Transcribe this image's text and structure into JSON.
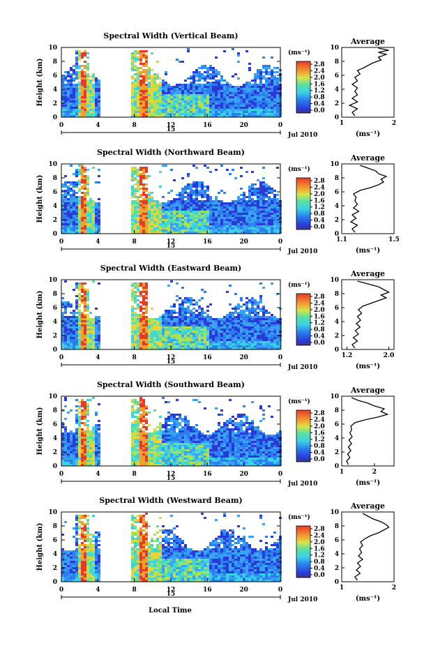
{
  "figure": {
    "x_axis_label": "Local Time",
    "date_label": "Jul 2010",
    "colorbar_unit": "(ms⁻¹)",
    "average_title": "Average",
    "average_unit": "(ms⁻¹)"
  },
  "chart_data": [
    {
      "type": "heatmap",
      "title": "Spectral Width (Vertical Beam)",
      "ylabel": "Height (km)",
      "ylim": [
        0,
        10
      ],
      "yticks": [
        "0",
        "2",
        "4",
        "6",
        "8",
        "10"
      ],
      "xlim": [
        0,
        24
      ],
      "xticks": [
        "0",
        "4",
        "8",
        "12",
        "16",
        "20",
        "0"
      ],
      "day_label": "15",
      "colorbar": {
        "ticks": [
          "2.8",
          "2.4",
          "2.0",
          "1.6",
          "1.2",
          "0.8",
          "0.4",
          "0.0"
        ],
        "range": [
          0,
          3.0
        ]
      },
      "data_gap_hours": [
        4.2,
        7.4
      ],
      "average": {
        "xticks": [
          "1",
          "2"
        ],
        "xlim": [
          1,
          2
        ],
        "ylim": [
          0,
          10
        ],
        "profile": [
          [
            0.2,
            1.25
          ],
          [
            0.7,
            1.2
          ],
          [
            1.2,
            1.3
          ],
          [
            1.7,
            1.15
          ],
          [
            2.2,
            1.3
          ],
          [
            2.7,
            1.2
          ],
          [
            3.2,
            1.3
          ],
          [
            3.7,
            1.25
          ],
          [
            4.2,
            1.3
          ],
          [
            4.7,
            1.2
          ],
          [
            5.2,
            1.3
          ],
          [
            5.7,
            1.25
          ],
          [
            6.2,
            1.35
          ],
          [
            6.7,
            1.3
          ],
          [
            7.0,
            1.4
          ],
          [
            7.4,
            1.5
          ],
          [
            7.8,
            1.6
          ],
          [
            8.2,
            1.75
          ],
          [
            8.6,
            1.7
          ],
          [
            9.0,
            1.85
          ],
          [
            9.3,
            1.7
          ],
          [
            9.6,
            1.9
          ],
          [
            9.9,
            1.7
          ]
        ]
      }
    },
    {
      "type": "heatmap",
      "title": "Spectral Width (Northward Beam)",
      "ylabel": "Height (km)",
      "ylim": [
        0,
        10
      ],
      "yticks": [
        "0",
        "2",
        "4",
        "6",
        "8",
        "10"
      ],
      "xlim": [
        0,
        24
      ],
      "xticks": [
        "0",
        "4",
        "8",
        "12",
        "16",
        "20",
        "0"
      ],
      "day_label": "15",
      "colorbar": {
        "ticks": [
          "2.8",
          "2.4",
          "2.0",
          "1.6",
          "1.2",
          "0.8",
          "0.4",
          "0.0"
        ],
        "range": [
          0,
          3.0
        ]
      },
      "data_gap_hours": [
        4.2,
        7.4
      ],
      "average": {
        "xticks": [
          "1.1",
          "1.5"
        ],
        "xlim": [
          1.1,
          1.5
        ],
        "ylim": [
          0,
          10
        ],
        "profile": [
          [
            0.2,
            1.2
          ],
          [
            0.7,
            1.18
          ],
          [
            1.2,
            1.22
          ],
          [
            1.7,
            1.17
          ],
          [
            2.2,
            1.21
          ],
          [
            2.7,
            1.18
          ],
          [
            3.2,
            1.23
          ],
          [
            3.7,
            1.19
          ],
          [
            4.2,
            1.22
          ],
          [
            4.7,
            1.2
          ],
          [
            5.2,
            1.21
          ],
          [
            5.7,
            1.19
          ],
          [
            6.2,
            1.24
          ],
          [
            6.6,
            1.32
          ],
          [
            7.0,
            1.38
          ],
          [
            7.4,
            1.42
          ],
          [
            7.8,
            1.4
          ],
          [
            8.2,
            1.44
          ],
          [
            8.6,
            1.38
          ],
          [
            9.0,
            1.36
          ],
          [
            9.4,
            1.3
          ],
          [
            9.8,
            1.24
          ]
        ]
      }
    },
    {
      "type": "heatmap",
      "title": "Spectral Width (Eastward Beam)",
      "ylabel": "Height (km)",
      "ylim": [
        0,
        10
      ],
      "yticks": [
        "0",
        "2",
        "4",
        "6",
        "8",
        "10"
      ],
      "xlim": [
        0,
        24
      ],
      "xticks": [
        "0",
        "4",
        "8",
        "12",
        "16",
        "20",
        "0"
      ],
      "day_label": "15",
      "colorbar": {
        "ticks": [
          "2.8",
          "2.4",
          "2.0",
          "1.6",
          "1.2",
          "0.8",
          "0.4",
          "0.0"
        ],
        "range": [
          0,
          3.0
        ]
      },
      "data_gap_hours": [
        4.2,
        7.4
      ],
      "average": {
        "xticks": [
          "1.2",
          "2.0"
        ],
        "xlim": [
          1.1,
          2.1
        ],
        "ylim": [
          0,
          10
        ],
        "profile": [
          [
            0.2,
            1.35
          ],
          [
            0.7,
            1.3
          ],
          [
            1.2,
            1.4
          ],
          [
            1.7,
            1.32
          ],
          [
            2.2,
            1.42
          ],
          [
            2.7,
            1.36
          ],
          [
            3.2,
            1.45
          ],
          [
            3.7,
            1.38
          ],
          [
            4.2,
            1.46
          ],
          [
            4.7,
            1.4
          ],
          [
            5.2,
            1.48
          ],
          [
            5.7,
            1.42
          ],
          [
            6.2,
            1.5
          ],
          [
            6.6,
            1.65
          ],
          [
            7.0,
            1.8
          ],
          [
            7.4,
            1.95
          ],
          [
            7.8,
            1.85
          ],
          [
            8.2,
            2.0
          ],
          [
            8.6,
            1.9
          ],
          [
            9.0,
            1.8
          ],
          [
            9.4,
            1.6
          ],
          [
            9.8,
            1.4
          ]
        ]
      }
    },
    {
      "type": "heatmap",
      "title": "Spectral Width (Southward Beam)",
      "ylabel": "Height (km)",
      "ylim": [
        0,
        10
      ],
      "yticks": [
        "0",
        "2",
        "4",
        "6",
        "8",
        "10"
      ],
      "xlim": [
        0,
        24
      ],
      "xticks": [
        "0",
        "4",
        "8",
        "12",
        "16",
        "20",
        "0"
      ],
      "day_label": "15",
      "colorbar": {
        "ticks": [
          "2.8",
          "2.4",
          "2.0",
          "1.6",
          "1.2",
          "0.8",
          "0.4",
          "0.0"
        ],
        "range": [
          0,
          3.0
        ]
      },
      "data_gap_hours": [
        4.2,
        7.4
      ],
      "average": {
        "xticks": [
          "1",
          "2"
        ],
        "xlim": [
          1,
          2.6
        ],
        "ylim": [
          0,
          10
        ],
        "profile": [
          [
            0.2,
            1.2
          ],
          [
            0.7,
            1.15
          ],
          [
            1.2,
            1.25
          ],
          [
            1.7,
            1.18
          ],
          [
            2.2,
            1.28
          ],
          [
            2.7,
            1.2
          ],
          [
            3.2,
            1.3
          ],
          [
            3.7,
            1.22
          ],
          [
            4.2,
            1.32
          ],
          [
            4.7,
            1.25
          ],
          [
            5.2,
            1.3
          ],
          [
            5.7,
            1.28
          ],
          [
            6.2,
            1.4
          ],
          [
            6.6,
            1.7
          ],
          [
            7.0,
            2.1
          ],
          [
            7.4,
            2.4
          ],
          [
            7.8,
            2.2
          ],
          [
            8.2,
            2.3
          ],
          [
            8.6,
            2.0
          ],
          [
            9.0,
            1.8
          ],
          [
            9.4,
            1.5
          ],
          [
            9.8,
            1.3
          ]
        ]
      }
    },
    {
      "type": "heatmap",
      "title": "Spectral Width (Westward Beam)",
      "ylabel": "Height (km)",
      "ylim": [
        0,
        10
      ],
      "yticks": [
        "0",
        "2",
        "4",
        "6",
        "8",
        "10"
      ],
      "xlim": [
        0,
        24
      ],
      "xticks": [
        "0",
        "4",
        "8",
        "12",
        "16",
        "20",
        "0"
      ],
      "day_label": "15",
      "colorbar": {
        "ticks": [
          "2.8",
          "2.4",
          "2.0",
          "1.6",
          "1.2",
          "0.8",
          "0.4",
          "0.0"
        ],
        "range": [
          0,
          3.0
        ]
      },
      "data_gap_hours": [
        4.2,
        7.4
      ],
      "average": {
        "xticks": [
          "1",
          "2"
        ],
        "xlim": [
          1,
          2
        ],
        "ylim": [
          0,
          10
        ],
        "profile": [
          [
            0.2,
            1.3
          ],
          [
            0.7,
            1.25
          ],
          [
            1.2,
            1.35
          ],
          [
            1.7,
            1.28
          ],
          [
            2.2,
            1.36
          ],
          [
            2.7,
            1.3
          ],
          [
            3.2,
            1.4
          ],
          [
            3.7,
            1.32
          ],
          [
            4.2,
            1.38
          ],
          [
            4.7,
            1.34
          ],
          [
            5.2,
            1.4
          ],
          [
            5.7,
            1.36
          ],
          [
            6.2,
            1.45
          ],
          [
            6.6,
            1.55
          ],
          [
            7.0,
            1.7
          ],
          [
            7.4,
            1.8
          ],
          [
            7.8,
            1.9
          ],
          [
            8.2,
            1.85
          ],
          [
            8.6,
            1.75
          ],
          [
            9.0,
            1.6
          ],
          [
            9.4,
            1.5
          ],
          [
            9.8,
            1.4
          ]
        ]
      }
    }
  ]
}
